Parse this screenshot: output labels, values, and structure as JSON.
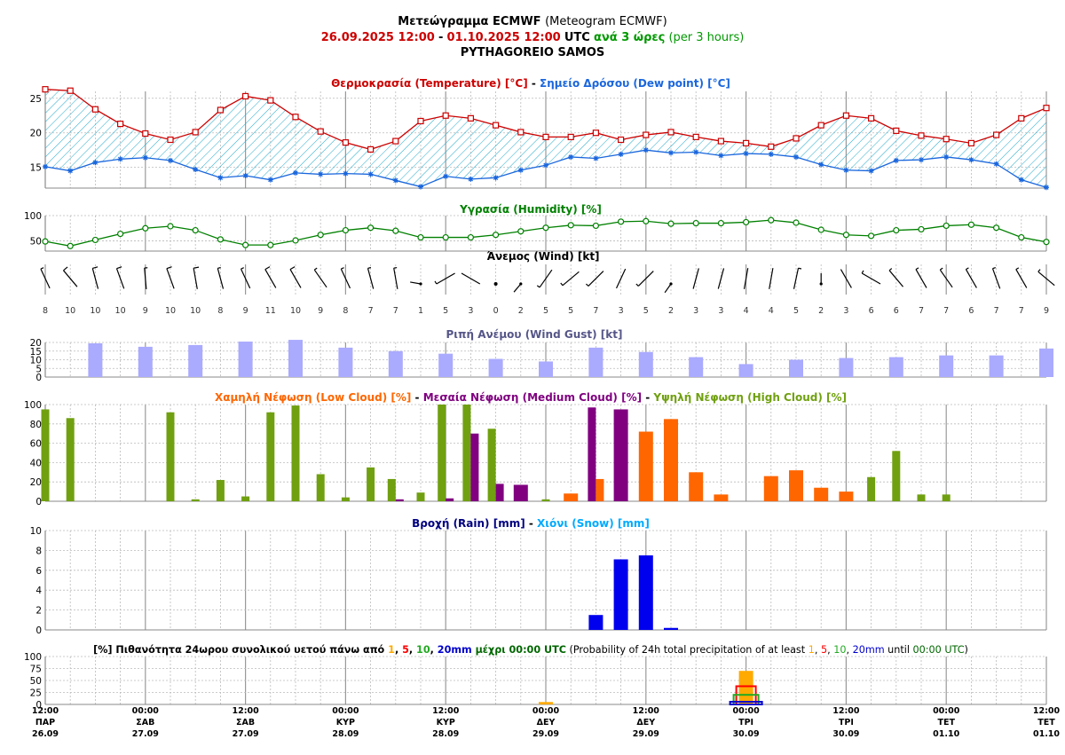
{
  "header": {
    "title_gr": "Μετεώγραμμα ECMWF",
    "title_en": "(Meteogram ECMWF)",
    "range_from": "26.09.2025 12:00",
    "range_sep": "-",
    "range_to": "01.10.2025 12:00",
    "range_tz": "UTC",
    "step_gr": "ανά 3 ώρες",
    "step_en": "(per 3 hours)",
    "location": "PYTHAGOREIO SAMOS"
  },
  "colors": {
    "temperature": "#cc0000",
    "dewpoint": "#1a66dd",
    "humidity": "#008000",
    "gust": "#aaaaff",
    "low_cloud": "#ff6600",
    "medium_cloud": "#800080",
    "high_cloud": "#70a010",
    "rain": "#0000ee",
    "snow": "#00aaff",
    "p1": "#ffaa00",
    "p5": "#ff0000",
    "p10": "#22aa22",
    "p20": "#0000cc",
    "green_text": "#009900",
    "title_gray": "#555588"
  },
  "panels": {
    "temp": {
      "t1": "Θερμοκρασία (Temperature) [°C]",
      "sep": " - ",
      "t2": "Σημείο Δρόσου (Dew point) [°C]"
    },
    "humidity": {
      "t1": "Υγρασία (Humidity) [%]"
    },
    "wind": {
      "t1": "Άνεμος (Wind) [kt]"
    },
    "gust": {
      "t1": "Ριπή Ανέμου (Wind Gust) [kt]"
    },
    "cloud": {
      "t1": "Χαμηλή Νέφωση (Low Cloud) [%]",
      "sep1": " - ",
      "t2": "Μεσαία Νέφωση (Medium Cloud) [%]",
      "sep2": " - ",
      "t3": "Υψηλή Νέφωση (High Cloud) [%]"
    },
    "rain": {
      "t1": "Βροχή (Rain) [mm]",
      "sep": " - ",
      "t2": "Χιόνι (Snow) [mm]"
    },
    "prob": {
      "gr_a": "[%] Πιθανότητα 24ωρου συνολικού υετού πάνω από ",
      "n1": "1",
      "c1": ", ",
      "n5": "5",
      "c2": ", ",
      "n10": "10",
      "c3": ", ",
      "n20": "20mm",
      "gr_b": " μέχρι 00:00 UTC",
      "en_a": " (Probability of 24h total precipitation of at least ",
      "en_c1": ", ",
      "en_c2": ", ",
      "en_c3": ", ",
      "en_n20": "20mm",
      "en_b": " until ",
      "en_time": "00:00 UTC",
      "en_c": ")"
    }
  },
  "chart_data": [
    {
      "type": "line",
      "title": "Θερμοκρασία (Temperature) [°C] - Σημείο Δρόσου (Dew point) [°C]",
      "x_step_hours": 3,
      "ylim": [
        12,
        26
      ],
      "yticks": [
        15,
        20,
        25
      ],
      "series": [
        {
          "name": "Θερμοκρασία (Temperature) [°C]",
          "values": [
            26.3,
            26.1,
            23.4,
            21.3,
            19.9,
            19.0,
            20.1,
            23.3,
            25.3,
            24.7,
            22.3,
            20.2,
            18.6,
            17.6,
            18.8,
            21.7,
            22.5,
            22.1,
            21.1,
            20.1,
            19.4,
            19.4,
            20.0,
            19.0,
            19.7,
            20.1,
            19.4,
            18.8,
            18.5,
            18.0,
            19.2,
            21.1,
            22.5,
            22.1,
            20.3,
            19.6,
            19.1,
            18.5,
            19.7,
            22.1,
            23.6
          ]
        },
        {
          "name": "Σημείο Δρόσου (Dew point) [°C]",
          "values": [
            15.1,
            14.5,
            15.7,
            16.2,
            16.4,
            16.0,
            14.7,
            13.5,
            13.8,
            13.2,
            14.2,
            14.0,
            14.1,
            14.0,
            13.1,
            12.2,
            13.7,
            13.3,
            13.5,
            14.6,
            15.3,
            16.5,
            16.3,
            16.9,
            17.5,
            17.1,
            17.2,
            16.7,
            17.0,
            16.9,
            16.5,
            15.4,
            14.6,
            14.5,
            16.0,
            16.1,
            16.5,
            16.1,
            15.5,
            13.2,
            12.1
          ]
        }
      ]
    },
    {
      "type": "line",
      "title": "Υγρασία (Humidity) [%]",
      "ylim": [
        30,
        100
      ],
      "yticks": [
        50,
        100
      ],
      "series": [
        {
          "name": "Υγρασία (Humidity) [%]",
          "values": [
            49,
            40,
            52,
            64,
            75,
            79,
            71,
            53,
            42,
            42,
            51,
            62,
            71,
            76,
            70,
            57,
            57,
            57,
            62,
            69,
            76,
            81,
            80,
            88,
            89,
            84,
            85,
            85,
            87,
            91,
            86,
            72,
            62,
            60,
            71,
            73,
            80,
            82,
            76,
            57,
            48
          ]
        }
      ]
    },
    {
      "type": "wind",
      "title": "Άνεμος (Wind) [kt]",
      "speed_kt": [
        8,
        10,
        10,
        10,
        9,
        10,
        10,
        8,
        9,
        11,
        10,
        9,
        8,
        7,
        7,
        1,
        5,
        3,
        0,
        2,
        5,
        5,
        7,
        3,
        5,
        2,
        3,
        3,
        4,
        4,
        5,
        2,
        3,
        6,
        6,
        7,
        7,
        6,
        7,
        7,
        9
      ],
      "direction_deg": [
        335,
        320,
        345,
        340,
        355,
        340,
        350,
        345,
        335,
        330,
        330,
        325,
        335,
        345,
        350,
        280,
        240,
        300,
        0,
        220,
        215,
        230,
        225,
        25,
        225,
        215,
        15,
        15,
        10,
        10,
        12,
        0,
        330,
        300,
        320,
        330,
        325,
        330,
        340,
        330,
        310
      ]
    },
    {
      "type": "bar",
      "title": "Ριπή Ανέμου (Wind Gust) [kt]",
      "ylim": [
        0,
        20
      ],
      "yticks": [
        0,
        5,
        10,
        15,
        20
      ],
      "step_hours": 6,
      "values": [
        null,
        19.5,
        17.5,
        18.5,
        20.5,
        21.5,
        17,
        15,
        13.5,
        10.5,
        9,
        17,
        14.5,
        11.5,
        7.5,
        10,
        11,
        11.5,
        12.5,
        12.5,
        16.5
      ]
    },
    {
      "type": "bar",
      "title": "Χαμηλή Νέφωση (Low Cloud) [%] - Μεσαία Νέφωση (Medium Cloud) [%] - Υψηλή Νέφωση (High Cloud) [%]",
      "ylim": [
        0,
        100
      ],
      "yticks": [
        0,
        20,
        40,
        60,
        80,
        100
      ],
      "series": [
        {
          "name": "Χαμηλή Νέφωση (Low Cloud) [%]",
          "values": [
            0,
            0,
            0,
            0,
            0,
            0,
            0,
            0,
            0,
            0,
            0,
            0,
            0,
            0,
            0,
            0,
            0,
            0,
            0,
            0,
            0,
            8,
            23,
            0,
            72,
            85,
            30,
            7,
            0,
            26,
            32,
            14,
            10,
            0,
            0,
            0,
            0,
            0,
            0,
            0,
            0
          ]
        },
        {
          "name": "Μεσαία Νέφωση (Medium Cloud) [%]",
          "values": [
            0,
            0,
            0,
            0,
            0,
            0,
            0,
            0,
            0,
            0,
            0,
            0,
            0,
            0,
            2,
            0,
            3,
            70,
            18,
            17,
            0,
            0,
            97,
            95,
            0,
            0,
            0,
            0,
            0,
            0,
            0,
            0,
            0,
            0,
            0,
            0,
            0,
            0,
            0,
            0,
            0
          ]
        },
        {
          "name": "Υψηλή Νέφωση (High Cloud) [%]",
          "values": [
            95,
            86,
            0,
            0,
            0,
            92,
            2,
            22,
            5,
            92,
            99,
            28,
            4,
            35,
            23,
            9,
            100,
            100,
            75,
            0,
            2,
            0,
            0,
            0,
            0,
            0,
            0,
            0,
            0,
            0,
            0,
            0,
            0,
            25,
            52,
            7,
            7,
            0,
            0,
            0,
            0
          ]
        }
      ]
    },
    {
      "type": "bar",
      "title": "Βροχή (Rain) [mm] - Χιόνι (Snow) [mm]",
      "ylim": [
        0,
        10
      ],
      "yticks": [
        0,
        2,
        4,
        6,
        8,
        10
      ],
      "series": [
        {
          "name": "Βροχή (Rain) [mm]",
          "values": [
            0,
            0,
            0,
            0,
            0,
            0,
            0,
            0,
            0,
            0,
            0,
            0,
            0,
            0,
            0,
            0,
            0,
            0,
            0,
            0,
            0,
            0,
            1.5,
            7.1,
            7.5,
            0.2,
            0,
            0,
            0,
            0,
            0,
            0,
            0,
            0,
            0,
            0,
            0,
            0,
            0,
            0,
            0
          ]
        },
        {
          "name": "Χιόνι (Snow) [mm]",
          "values": [
            0,
            0,
            0,
            0,
            0,
            0,
            0,
            0,
            0,
            0,
            0,
            0,
            0,
            0,
            0,
            0,
            0,
            0,
            0,
            0,
            0,
            0,
            0,
            0,
            0,
            0,
            0,
            0,
            0,
            0,
            0,
            0,
            0,
            0,
            0,
            0,
            0,
            0,
            0,
            0,
            0
          ]
        }
      ]
    },
    {
      "type": "bar",
      "title": "[%] Πιθανότητα 24ωρου συνολικού υετού (Probability of 24h total precipitation)",
      "ylim": [
        0,
        100
      ],
      "yticks": [
        0,
        25,
        50,
        75,
        100
      ],
      "categories": [
        "29.09 00:00",
        "30.09 00:00"
      ],
      "series": [
        {
          "name": "1",
          "values": [
            5,
            70
          ]
        },
        {
          "name": "5",
          "values": [
            0,
            38
          ]
        },
        {
          "name": "10",
          "values": [
            0,
            20
          ]
        },
        {
          "name": "20mm",
          "values": [
            0,
            4
          ]
        }
      ]
    }
  ],
  "x_axis": {
    "ticks": [
      {
        "time": "12:00",
        "day": "ΠΑΡ",
        "date": "26.09"
      },
      {
        "time": "00:00",
        "day": "ΣΑΒ",
        "date": "27.09"
      },
      {
        "time": "12:00",
        "day": "ΣΑΒ",
        "date": "27.09"
      },
      {
        "time": "00:00",
        "day": "ΚΥΡ",
        "date": "28.09"
      },
      {
        "time": "12:00",
        "day": "ΚΥΡ",
        "date": "28.09"
      },
      {
        "time": "00:00",
        "day": "ΔΕΥ",
        "date": "29.09"
      },
      {
        "time": "12:00",
        "day": "ΔΕΥ",
        "date": "29.09"
      },
      {
        "time": "00:00",
        "day": "ΤΡΙ",
        "date": "30.09"
      },
      {
        "time": "12:00",
        "day": "ΤΡΙ",
        "date": "30.09"
      },
      {
        "time": "00:00",
        "day": "ΤΕΤ",
        "date": "01.10"
      },
      {
        "time": "12:00",
        "day": "ΤΕΤ",
        "date": "01.10"
      }
    ]
  }
}
